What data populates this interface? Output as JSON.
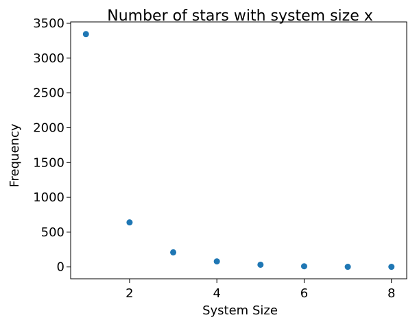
{
  "chart_data": {
    "type": "scatter",
    "title": "Number of stars with system size x",
    "xlabel": "System Size",
    "ylabel": "Frequency",
    "x": [
      1,
      2,
      3,
      4,
      5,
      6,
      7,
      8
    ],
    "y": [
      3345,
      640,
      210,
      80,
      32,
      10,
      2,
      2
    ],
    "xlim": [
      0.65,
      8.35
    ],
    "ylim": [
      -170,
      3520
    ],
    "xticks": [
      2,
      4,
      6,
      8
    ],
    "xtick_labels": [
      "2",
      "4",
      "6",
      "8"
    ],
    "yticks": [
      0,
      500,
      1000,
      1500,
      2000,
      2500,
      3000,
      3500
    ],
    "ytick_labels": [
      "0",
      "500",
      "1000",
      "1500",
      "2000",
      "2500",
      "3000",
      "3500"
    ],
    "grid": false,
    "marker_color": "#1f77b4"
  }
}
